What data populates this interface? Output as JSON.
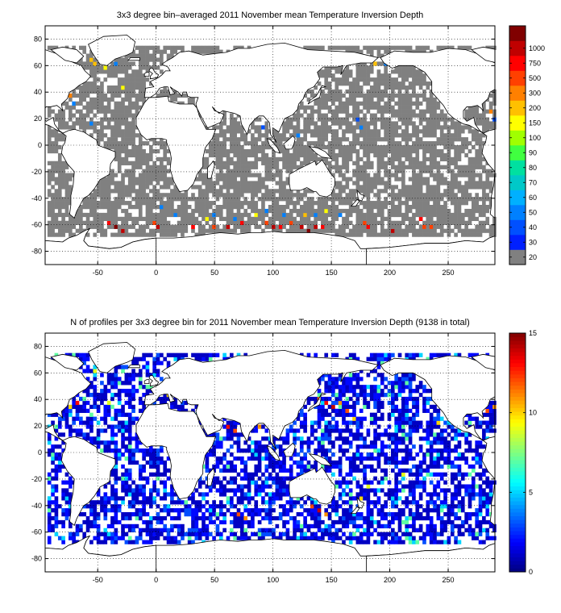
{
  "chart_data": [
    {
      "type": "heatmap",
      "title": "3x3 degree bin–averaged 2011 November mean Temperature Inversion Depth",
      "xlabel": "",
      "ylabel": "",
      "xlim": [
        -95,
        290
      ],
      "ylim": [
        -90,
        90
      ],
      "x_ticks": [
        -50,
        0,
        50,
        100,
        150,
        200,
        250
      ],
      "y_ticks": [
        80,
        60,
        40,
        20,
        0,
        -20,
        -40,
        -60,
        -80
      ],
      "grid": true,
      "colorbar": {
        "scale": "categorical",
        "labels": [
          "20",
          "30",
          "40",
          "50",
          "60",
          "70",
          "80",
          "90",
          "100",
          "150",
          "200",
          "300",
          "500",
          "750",
          "1000"
        ],
        "colors": [
          "#808080",
          "#0020ff",
          "#0050ff",
          "#0080ff",
          "#00b0ff",
          "#00c8c8",
          "#00e0a0",
          "#40ff40",
          "#a0ff00",
          "#ffff00",
          "#ffc000",
          "#ff8000",
          "#ff4000",
          "#ff0000",
          "#c00000",
          "#800000"
        ]
      },
      "bin_size_deg": 3,
      "dominant_value": "20",
      "notable_bins": [
        {
          "x": -57,
          "y": 63,
          "value": "150"
        },
        {
          "x": -54,
          "y": 60,
          "value": "150"
        },
        {
          "x": -45,
          "y": 57,
          "value": "100"
        },
        {
          "x": -40,
          "y": 45,
          "value": "150"
        },
        {
          "x": -36,
          "y": 60,
          "value": "40"
        },
        {
          "x": -30,
          "y": 42,
          "value": "100"
        },
        {
          "x": -75,
          "y": 36,
          "value": "200"
        },
        {
          "x": -72,
          "y": 30,
          "value": "40"
        },
        {
          "x": -57,
          "y": 15,
          "value": "40"
        },
        {
          "x": 63,
          "y": 48,
          "value": "40"
        },
        {
          "x": 90,
          "y": 12,
          "value": "30"
        },
        {
          "x": 120,
          "y": 6,
          "value": "40"
        },
        {
          "x": 186,
          "y": 60,
          "value": "150"
        },
        {
          "x": 195,
          "y": 60,
          "value": "40"
        },
        {
          "x": 171,
          "y": 18,
          "value": "30"
        },
        {
          "x": 174,
          "y": 12,
          "value": "40"
        },
        {
          "x": 285,
          "y": 24,
          "value": "200"
        },
        {
          "x": 288,
          "y": 18,
          "value": "30"
        },
        {
          "x": 3,
          "y": -48,
          "value": "40"
        },
        {
          "x": 15,
          "y": -54,
          "value": "40"
        },
        {
          "x": 42,
          "y": -57,
          "value": "100"
        },
        {
          "x": 48,
          "y": -54,
          "value": "40"
        },
        {
          "x": 66,
          "y": -57,
          "value": "40"
        },
        {
          "x": 84,
          "y": -54,
          "value": "100"
        },
        {
          "x": 93,
          "y": -51,
          "value": "40"
        },
        {
          "x": 108,
          "y": -54,
          "value": "40"
        },
        {
          "x": 126,
          "y": -54,
          "value": "150"
        },
        {
          "x": 135,
          "y": -54,
          "value": "40"
        },
        {
          "x": 144,
          "y": -51,
          "value": "100"
        },
        {
          "x": 156,
          "y": -54,
          "value": "40"
        },
        {
          "x": -42,
          "y": -60,
          "value": "500"
        },
        {
          "x": -36,
          "y": -63,
          "value": "1000"
        },
        {
          "x": -30,
          "y": -66,
          "value": "750"
        },
        {
          "x": -3,
          "y": -60,
          "value": "300"
        },
        {
          "x": 0,
          "y": -63,
          "value": "750"
        },
        {
          "x": 30,
          "y": -63,
          "value": "500"
        },
        {
          "x": 48,
          "y": -63,
          "value": "300"
        },
        {
          "x": 60,
          "y": -63,
          "value": "750"
        },
        {
          "x": 72,
          "y": -60,
          "value": "500"
        },
        {
          "x": 93,
          "y": -60,
          "value": "300"
        },
        {
          "x": 99,
          "y": -63,
          "value": "750"
        },
        {
          "x": 105,
          "y": -63,
          "value": "500"
        },
        {
          "x": 114,
          "y": -60,
          "value": "300"
        },
        {
          "x": 123,
          "y": -63,
          "value": "750"
        },
        {
          "x": 129,
          "y": -66,
          "value": "1000"
        },
        {
          "x": 135,
          "y": -63,
          "value": "750"
        },
        {
          "x": 141,
          "y": -63,
          "value": "500"
        },
        {
          "x": 177,
          "y": -60,
          "value": "300"
        },
        {
          "x": 180,
          "y": -63,
          "value": "500"
        },
        {
          "x": 201,
          "y": -66,
          "value": "750"
        },
        {
          "x": 225,
          "y": -57,
          "value": "500"
        },
        {
          "x": 228,
          "y": -63,
          "value": "300"
        },
        {
          "x": 234,
          "y": -63,
          "value": "300"
        }
      ]
    },
    {
      "type": "heatmap",
      "title": "N of profiles per 3x3 degree bin for 2011 November mean Temperature Inversion Depth  (9138 in total)",
      "xlabel": "",
      "ylabel": "",
      "xlim": [
        -95,
        290
      ],
      "ylim": [
        -90,
        90
      ],
      "x_ticks": [
        -50,
        0,
        50,
        100,
        150,
        200,
        250
      ],
      "y_ticks": [
        80,
        60,
        40,
        20,
        0,
        -20,
        -40,
        -60,
        -80
      ],
      "grid": true,
      "colorbar": {
        "scale": "continuous",
        "range": [
          0,
          15
        ],
        "ticks": [
          0,
          5,
          10,
          15
        ],
        "colormap": "jet"
      },
      "bin_size_deg": 3,
      "total_profiles": 9138,
      "typical_count": 2,
      "hotspots": [
        {
          "x": 144,
          "y": 36,
          "count": 13
        },
        {
          "x": 150,
          "y": 33,
          "count": 14
        },
        {
          "x": 138,
          "y": 39,
          "count": 12
        },
        {
          "x": 156,
          "y": 36,
          "count": 11
        },
        {
          "x": 162,
          "y": 30,
          "count": 12
        },
        {
          "x": 168,
          "y": 24,
          "count": 10
        },
        {
          "x": 132,
          "y": -42,
          "count": 12
        },
        {
          "x": 138,
          "y": -45,
          "count": 14
        },
        {
          "x": 144,
          "y": -48,
          "count": 11
        },
        {
          "x": 60,
          "y": 18,
          "count": 13
        },
        {
          "x": 66,
          "y": 15,
          "count": 12
        },
        {
          "x": 87,
          "y": 18,
          "count": 11
        },
        {
          "x": 30,
          "y": 36,
          "count": 11
        },
        {
          "x": 9,
          "y": 42,
          "count": 10
        },
        {
          "x": -54,
          "y": 60,
          "count": 9
        },
        {
          "x": -75,
          "y": 33,
          "count": 10
        },
        {
          "x": -69,
          "y": 36,
          "count": 13
        },
        {
          "x": 282,
          "y": 30,
          "count": 12
        },
        {
          "x": 288,
          "y": 33,
          "count": 11
        },
        {
          "x": 69,
          "y": -48,
          "count": 12
        },
        {
          "x": 75,
          "y": -51,
          "count": 11
        },
        {
          "x": 174,
          "y": -36,
          "count": 10
        },
        {
          "x": 180,
          "y": -27,
          "count": 9
        },
        {
          "x": 210,
          "y": -18,
          "count": 9
        },
        {
          "x": 240,
          "y": 21,
          "count": 10
        },
        {
          "x": -42,
          "y": 36,
          "count": 9
        }
      ]
    }
  ]
}
